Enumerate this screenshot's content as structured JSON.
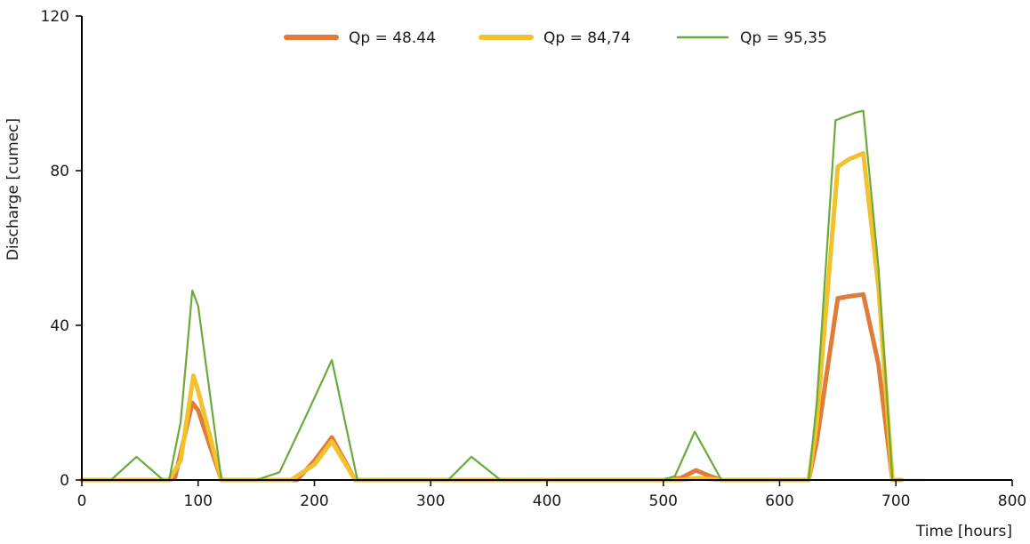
{
  "chart_data": {
    "type": "line",
    "xlabel": "Time [hours]",
    "ylabel": "Discharge [cumec]",
    "xlim": [
      0,
      800
    ],
    "ylim": [
      0,
      120
    ],
    "xticks": [
      0,
      100,
      200,
      300,
      400,
      500,
      600,
      700,
      800
    ],
    "yticks": [
      0,
      40,
      80,
      120
    ],
    "grid": false,
    "legend": "top-center",
    "series": [
      {
        "name": "Qp = 48.44",
        "color": "#e07b39",
        "width": "thick",
        "points": [
          [
            0,
            0
          ],
          [
            25,
            0
          ],
          [
            75,
            0
          ],
          [
            80,
            0.5
          ],
          [
            95,
            20
          ],
          [
            100,
            18
          ],
          [
            120,
            0
          ],
          [
            185,
            0
          ],
          [
            200,
            5
          ],
          [
            215,
            11
          ],
          [
            235,
            0
          ],
          [
            320,
            0
          ],
          [
            340,
            0
          ],
          [
            350,
            0
          ],
          [
            500,
            0
          ],
          [
            515,
            0.5
          ],
          [
            528,
            2.5
          ],
          [
            540,
            1
          ],
          [
            550,
            0
          ],
          [
            625,
            0
          ],
          [
            632,
            10
          ],
          [
            650,
            47
          ],
          [
            660,
            47.5
          ],
          [
            672,
            48
          ],
          [
            685,
            30
          ],
          [
            697,
            0
          ],
          [
            700,
            0
          ]
        ]
      },
      {
        "name": "Qp = 84,74",
        "color": "#f2c12e",
        "width": "thick",
        "points": [
          [
            0,
            0
          ],
          [
            25,
            0
          ],
          [
            40,
            0
          ],
          [
            60,
            0
          ],
          [
            75,
            0
          ],
          [
            85,
            5
          ],
          [
            96,
            27
          ],
          [
            100,
            23
          ],
          [
            120,
            0
          ],
          [
            160,
            0
          ],
          [
            180,
            0
          ],
          [
            200,
            4
          ],
          [
            215,
            10
          ],
          [
            235,
            0
          ],
          [
            320,
            0
          ],
          [
            340,
            0
          ],
          [
            350,
            0
          ],
          [
            500,
            0
          ],
          [
            515,
            0
          ],
          [
            530,
            0.5
          ],
          [
            550,
            0
          ],
          [
            625,
            0
          ],
          [
            632,
            15
          ],
          [
            650,
            81
          ],
          [
            660,
            83
          ],
          [
            672,
            84.5
          ],
          [
            685,
            50
          ],
          [
            697,
            0
          ],
          [
            705,
            0
          ]
        ]
      },
      {
        "name": "Qp = 95,35",
        "color": "#6aaa3a",
        "width": "thin",
        "points": [
          [
            0,
            0
          ],
          [
            25,
            0
          ],
          [
            47,
            6
          ],
          [
            70,
            0
          ],
          [
            75,
            0
          ],
          [
            85,
            15
          ],
          [
            95,
            49
          ],
          [
            100,
            45
          ],
          [
            120,
            0
          ],
          [
            150,
            0
          ],
          [
            170,
            2
          ],
          [
            195,
            18
          ],
          [
            215,
            31
          ],
          [
            237,
            0
          ],
          [
            315,
            0
          ],
          [
            335,
            6
          ],
          [
            360,
            0
          ],
          [
            500,
            0
          ],
          [
            510,
            1
          ],
          [
            527,
            12.5
          ],
          [
            550,
            0
          ],
          [
            625,
            0
          ],
          [
            632,
            20
          ],
          [
            648,
            93
          ],
          [
            665,
            95
          ],
          [
            672,
            95.5
          ],
          [
            685,
            55
          ],
          [
            697,
            0
          ],
          [
            725,
            0
          ]
        ]
      }
    ]
  }
}
